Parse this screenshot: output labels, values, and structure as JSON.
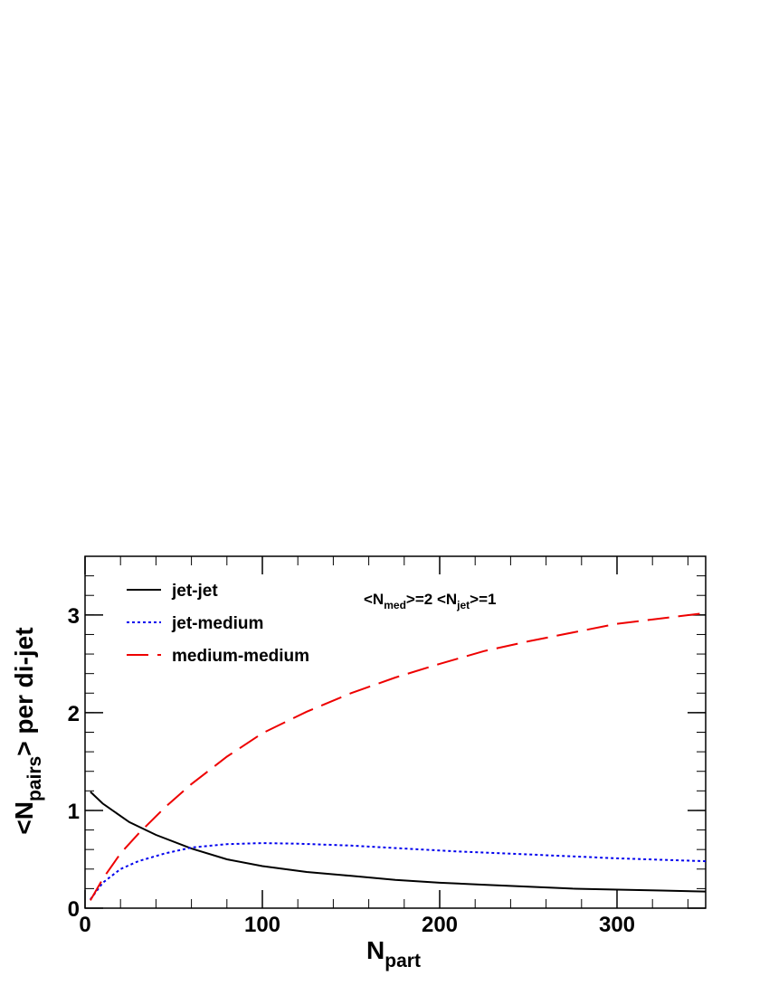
{
  "chart_data": {
    "type": "line",
    "title": "",
    "xlabel": {
      "main": "N",
      "sub": "part"
    },
    "ylabel": {
      "prefix": "<N",
      "sub": "pairs",
      "suffix": "> per di-jet"
    },
    "xlim": [
      0,
      350
    ],
    "ylim": [
      0,
      3.6
    ],
    "x_ticks": [
      0,
      100,
      200,
      300
    ],
    "x_tick_labels": [
      "0",
      "100",
      "200",
      "300"
    ],
    "y_ticks": [
      0,
      1,
      2,
      3
    ],
    "y_tick_labels": [
      "0",
      "1",
      "2",
      "3"
    ],
    "grid": false,
    "legend_position": "top-left",
    "annotation": {
      "part1": "<N",
      "sub1": "med",
      "part2": ">=2  <N",
      "sub2": "jet",
      "part3": ">=1"
    },
    "series": [
      {
        "name": "jet-jet",
        "color": "#000000",
        "dash": "solid",
        "x": [
          3,
          10,
          25,
          40,
          60,
          80,
          100,
          125,
          150,
          175,
          200,
          225,
          250,
          275,
          300,
          325,
          350
        ],
        "y": [
          1.19,
          1.07,
          0.88,
          0.75,
          0.61,
          0.5,
          0.43,
          0.37,
          0.33,
          0.29,
          0.26,
          0.24,
          0.22,
          0.2,
          0.19,
          0.18,
          0.17
        ]
      },
      {
        "name": "jet-medium",
        "color": "#0000ee",
        "dash": "dotted",
        "x": [
          3,
          10,
          20,
          30,
          45,
          60,
          80,
          100,
          120,
          150,
          180,
          210,
          250,
          300,
          350
        ],
        "y": [
          0.09,
          0.26,
          0.4,
          0.48,
          0.56,
          0.62,
          0.655,
          0.665,
          0.66,
          0.64,
          0.61,
          0.58,
          0.55,
          0.51,
          0.48
        ]
      },
      {
        "name": "medium-medium",
        "color": "#ee0000",
        "dash": "longdash",
        "x": [
          3,
          10,
          20,
          30,
          45,
          60,
          80,
          100,
          125,
          150,
          175,
          200,
          225,
          250,
          300,
          350
        ],
        "y": [
          0.08,
          0.3,
          0.56,
          0.76,
          1.03,
          1.27,
          1.55,
          1.79,
          2.01,
          2.2,
          2.36,
          2.5,
          2.63,
          2.73,
          2.91,
          3.02
        ]
      }
    ]
  }
}
